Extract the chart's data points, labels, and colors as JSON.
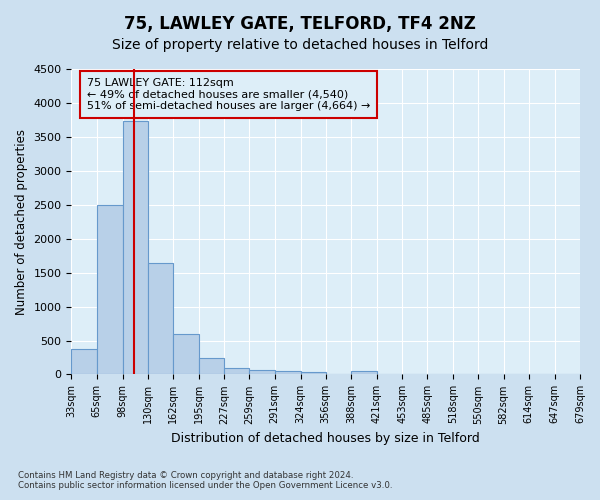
{
  "title": "75, LAWLEY GATE, TELFORD, TF4 2NZ",
  "subtitle": "Size of property relative to detached houses in Telford",
  "xlabel": "Distribution of detached houses by size in Telford",
  "ylabel": "Number of detached properties",
  "footnote1": "Contains HM Land Registry data © Crown copyright and database right 2024.",
  "footnote2": "Contains public sector information licensed under the Open Government Licence v3.0.",
  "annotation_line1": "75 LAWLEY GATE: 112sqm",
  "annotation_line2": "← 49% of detached houses are smaller (4,540)",
  "annotation_line3": "51% of semi-detached houses are larger (4,664) →",
  "bar_color": "#b8d0e8",
  "bar_edge_color": "#6699cc",
  "line_color": "#cc0000",
  "bin_labels": [
    "33sqm",
    "65sqm",
    "98sqm",
    "130sqm",
    "162sqm",
    "195sqm",
    "227sqm",
    "259sqm",
    "291sqm",
    "324sqm",
    "356sqm",
    "388sqm",
    "421sqm",
    "453sqm",
    "485sqm",
    "518sqm",
    "550sqm",
    "582sqm",
    "614sqm",
    "647sqm",
    "679sqm"
  ],
  "bar_values": [
    375,
    2500,
    3730,
    1640,
    600,
    240,
    100,
    60,
    50,
    40,
    0,
    50,
    0,
    0,
    0,
    0,
    0,
    0,
    0,
    0
  ],
  "property_size_sqm": 112,
  "bin_edges_sqm": [
    33,
    65,
    98,
    130,
    162,
    195,
    227,
    259,
    291,
    324,
    356,
    388,
    421,
    453,
    485,
    518,
    550,
    582,
    614,
    647,
    679
  ],
  "ylim": [
    0,
    4500
  ],
  "yticks": [
    0,
    500,
    1000,
    1500,
    2000,
    2500,
    3000,
    3500,
    4000,
    4500
  ],
  "background_color": "#cce0f0",
  "axes_facecolor": "#ddeef8",
  "grid_color": "#ffffff",
  "figsize": [
    6.0,
    5.0
  ],
  "dpi": 100,
  "title_fontsize": 12,
  "subtitle_fontsize": 10
}
